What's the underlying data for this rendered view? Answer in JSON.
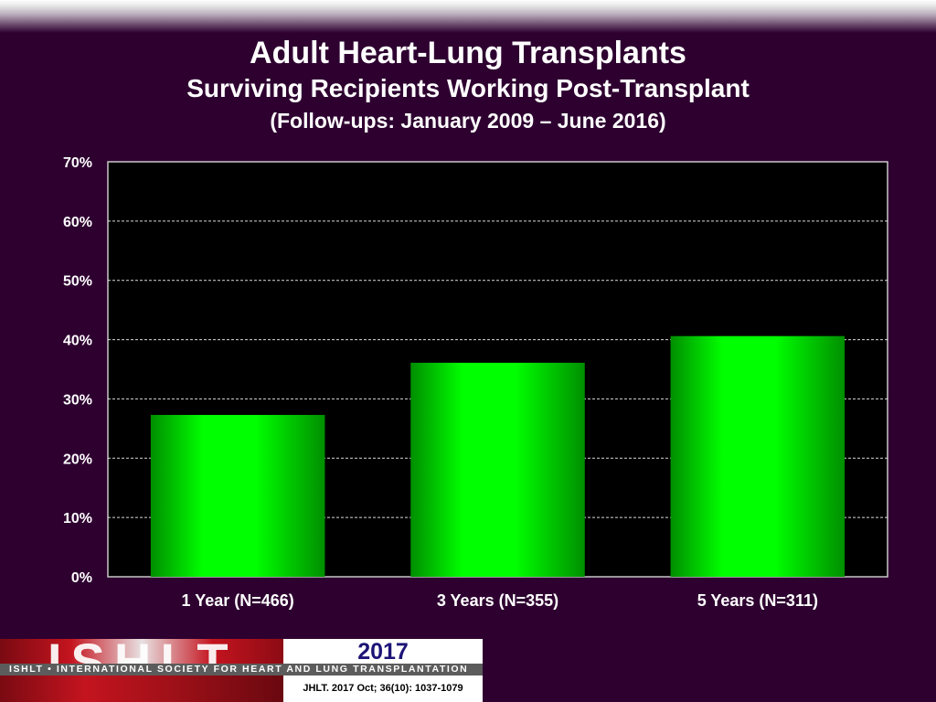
{
  "header": {
    "title": "Adult Heart-Lung Transplants",
    "subtitle": "Surviving Recipients Working Post-Transplant",
    "followup": "(Follow-ups: January 2009 – June 2016)"
  },
  "chart_data": {
    "type": "bar",
    "title": "Adult Heart-Lung Transplants",
    "subtitle": "Surviving Recipients Working Post-Transplant",
    "categories": [
      "1 Year (N=466)",
      "3 Years (N=355)",
      "5 Years (N=311)"
    ],
    "values": [
      27.3,
      36.1,
      40.6
    ],
    "unit": "%",
    "ylim": [
      0,
      70
    ],
    "yticks": [
      0,
      10,
      20,
      30,
      40,
      50,
      60,
      70
    ],
    "ytick_labels": [
      "0%",
      "10%",
      "20%",
      "30%",
      "40%",
      "50%",
      "60%",
      "70%"
    ],
    "xlabel": "",
    "ylabel": "",
    "grid": true,
    "legend": "none",
    "colors": {
      "bar": "#00ff00",
      "bar_edge": "#009a00",
      "plot_bg": "#000000",
      "page_bg": "#2e0030"
    }
  },
  "footer": {
    "logo_text": "ISHLT",
    "year": "2017",
    "org_name": "ISHLT • INTERNATIONAL SOCIETY FOR HEART AND LUNG TRANSPLANTATION",
    "citation": "JHLT. 2017 Oct; 36(10): 1037-1079"
  }
}
